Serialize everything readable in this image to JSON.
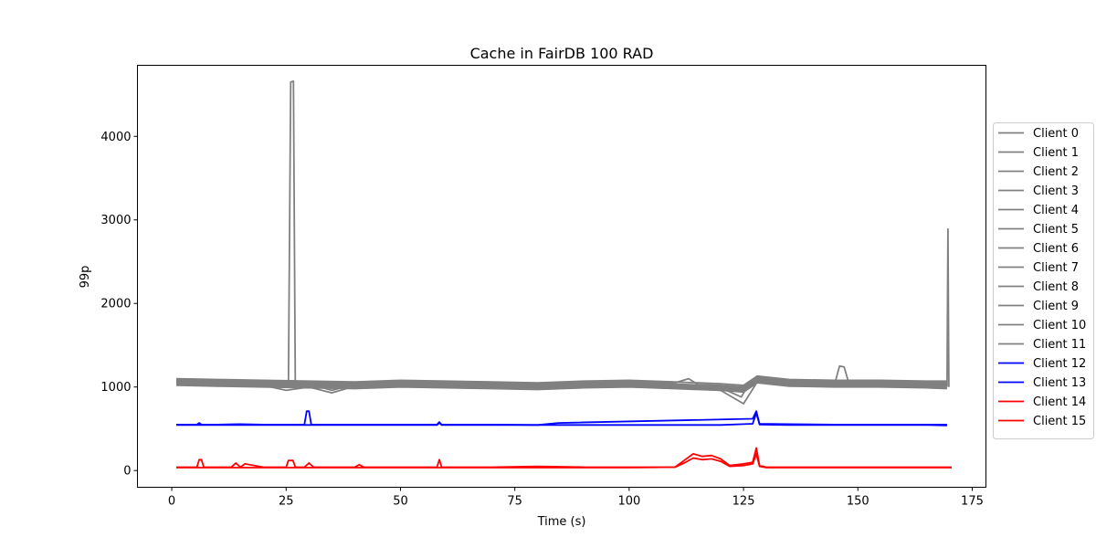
{
  "chart_data": {
    "type": "line",
    "title": "Cache in  FairDB 100 RAD",
    "xlabel": "Time (s)",
    "ylabel": "99p",
    "xlim": [
      -7.5,
      178
    ],
    "ylim": [
      -200,
      4850
    ],
    "xticks": [
      0,
      25,
      50,
      75,
      100,
      125,
      150,
      175
    ],
    "xtick_labels": [
      "0",
      "25",
      "50",
      "75",
      "100",
      "125",
      "150",
      "175"
    ],
    "yticks": [
      0,
      1000,
      2000,
      3000,
      4000
    ],
    "ytick_labels": [
      "0",
      "1000",
      "2000",
      "3000",
      "4000"
    ],
    "grid": false,
    "legend_position": "right",
    "colors": {
      "gray": "#808080",
      "blue": "#0000ff",
      "red": "#ff0000"
    },
    "series": [
      {
        "name": "Client 0",
        "color": "#808080",
        "x": [
          1,
          10,
          20,
          24,
          25.5,
          26,
          26.6,
          27,
          30,
          40,
          50,
          60,
          70,
          80,
          90,
          100,
          110,
          120,
          124,
          126,
          128,
          135,
          145,
          155,
          165,
          169.5
        ],
        "y": [
          1080,
          1070,
          1060,
          1040,
          1050,
          4650,
          4660,
          1060,
          1050,
          1040,
          1060,
          1040,
          1030,
          1020,
          1040,
          1050,
          1030,
          1010,
          980,
          1040,
          1110,
          1070,
          1060,
          1060,
          1050,
          1050
        ]
      },
      {
        "name": "Client 1",
        "color": "#808080",
        "x": [
          1,
          10,
          20,
          25,
          30,
          40,
          50,
          60,
          70,
          80,
          90,
          100,
          110,
          120,
          124.5,
          126,
          128,
          135,
          145,
          155,
          165,
          169.5
        ],
        "y": [
          1060,
          1050,
          1040,
          1000,
          1030,
          1020,
          1040,
          1030,
          1010,
          1000,
          1020,
          1030,
          1010,
          990,
          880,
          1020,
          1090,
          1050,
          1040,
          1040,
          1030,
          1030
        ]
      },
      {
        "name": "Client 2",
        "color": "#808080",
        "x": [
          1,
          10,
          20,
          25,
          30,
          35,
          40,
          50,
          60,
          70,
          80,
          90,
          100,
          110,
          120,
          125,
          128,
          135,
          145,
          155,
          165,
          169.5
        ],
        "y": [
          1040,
          1030,
          1020,
          960,
          1000,
          930,
          1010,
          1020,
          1010,
          990,
          980,
          1000,
          1010,
          990,
          960,
          800,
          1060,
          1030,
          1020,
          1020,
          1010,
          1010
        ]
      },
      {
        "name": "Client 3",
        "color": "#808080",
        "x": [
          1,
          10,
          20,
          30,
          40,
          50,
          60,
          70,
          80,
          90,
          100,
          110,
          113,
          115,
          120,
          125,
          128,
          135,
          145,
          155,
          165,
          169.5
        ],
        "y": [
          1090,
          1080,
          1070,
          1060,
          1050,
          1070,
          1060,
          1050,
          1040,
          1060,
          1070,
          1050,
          1100,
          1030,
          1020,
          1000,
          1120,
          1080,
          1070,
          1070,
          1060,
          1060
        ]
      },
      {
        "name": "Client 4",
        "color": "#808080",
        "x": [
          1,
          10,
          20,
          30,
          35,
          40,
          50,
          60,
          70,
          80,
          90,
          100,
          110,
          120,
          125,
          128,
          135,
          145,
          146,
          147,
          148,
          155,
          165,
          169.5
        ],
        "y": [
          1070,
          1060,
          1050,
          1040,
          960,
          1030,
          1050,
          1040,
          1030,
          1020,
          1040,
          1050,
          1030,
          1010,
          990,
          1100,
          1060,
          1050,
          1250,
          1240,
          1050,
          1050,
          1040,
          1040
        ]
      },
      {
        "name": "Client 5",
        "color": "#808080",
        "x": [
          1,
          10,
          20,
          30,
          40,
          50,
          60,
          70,
          80,
          90,
          100,
          110,
          120,
          125,
          128,
          135,
          145,
          155,
          165,
          169.5
        ],
        "y": [
          1050,
          1040,
          1030,
          1020,
          1010,
          1030,
          1020,
          1010,
          1000,
          1020,
          1030,
          1010,
          990,
          970,
          1080,
          1040,
          1030,
          1030,
          1020,
          1020
        ]
      },
      {
        "name": "Client 6",
        "color": "#808080",
        "x": [
          1,
          10,
          20,
          30,
          40,
          50,
          60,
          70,
          80,
          90,
          100,
          110,
          120,
          125,
          128,
          135,
          145,
          155,
          165,
          169.5
        ],
        "y": [
          1030,
          1020,
          1010,
          1000,
          990,
          1010,
          1000,
          990,
          980,
          1000,
          1010,
          990,
          970,
          950,
          1060,
          1020,
          1010,
          1010,
          1000,
          990
        ]
      },
      {
        "name": "Client 7",
        "color": "#808080",
        "x": [
          1,
          10,
          20,
          30,
          40,
          50,
          60,
          70,
          80,
          90,
          100,
          110,
          120,
          125,
          128,
          135,
          145,
          155,
          165,
          169.5
        ],
        "y": [
          1100,
          1090,
          1080,
          1070,
          1060,
          1080,
          1070,
          1060,
          1050,
          1070,
          1080,
          1060,
          1040,
          1020,
          1130,
          1090,
          1080,
          1080,
          1070,
          1070
        ]
      },
      {
        "name": "Client 8",
        "color": "#808080",
        "x": [
          1,
          10,
          20,
          30,
          40,
          50,
          60,
          70,
          80,
          90,
          100,
          110,
          120,
          125,
          128,
          135,
          145,
          155,
          165,
          169.5
        ],
        "y": [
          1020,
          1010,
          1000,
          990,
          980,
          1000,
          990,
          980,
          970,
          990,
          1000,
          980,
          960,
          940,
          1050,
          1010,
          1000,
          1000,
          990,
          980
        ]
      },
      {
        "name": "Client 9",
        "color": "#808080",
        "x": [
          1,
          10,
          20,
          30,
          40,
          50,
          60,
          70,
          80,
          90,
          100,
          110,
          120,
          125,
          128,
          135,
          145,
          155,
          165,
          169.5
        ],
        "y": [
          1060,
          1055,
          1045,
          1035,
          1025,
          1045,
          1035,
          1025,
          1015,
          1035,
          1045,
          1025,
          1005,
          985,
          1095,
          1055,
          1045,
          1045,
          1035,
          1035
        ]
      },
      {
        "name": "Client 10",
        "color": "#808080",
        "x": [
          1,
          10,
          20,
          30,
          40,
          50,
          60,
          70,
          80,
          90,
          100,
          110,
          120,
          125,
          128,
          135,
          145,
          155,
          165,
          169.5,
          169.7,
          169.9
        ],
        "y": [
          1045,
          1035,
          1025,
          1015,
          1005,
          1025,
          1015,
          1005,
          995,
          1015,
          1025,
          1005,
          985,
          965,
          1075,
          1035,
          1025,
          1025,
          1015,
          1010,
          2890,
          1000
        ]
      },
      {
        "name": "Client 11",
        "color": "#808080",
        "x": [
          1,
          10,
          20,
          30,
          40,
          50,
          60,
          70,
          80,
          90,
          100,
          110,
          120,
          125,
          128,
          135,
          145,
          155,
          165,
          169.5
        ],
        "y": [
          1075,
          1065,
          1055,
          1045,
          1035,
          1055,
          1045,
          1035,
          1025,
          1045,
          1055,
          1035,
          1015,
          995,
          1105,
          1065,
          1055,
          1055,
          1045,
          1045
        ]
      },
      {
        "name": "Client 12",
        "color": "#0000ff",
        "x": [
          1,
          5.5,
          6,
          6.5,
          10,
          15,
          20,
          29,
          29.5,
          30,
          30.5,
          40,
          50,
          58,
          58.5,
          59,
          70,
          80,
          84.5,
          127,
          127.8,
          128.5,
          135,
          145,
          155,
          165,
          169.5
        ],
        "y": [
          550,
          550,
          570,
          550,
          550,
          555,
          550,
          550,
          710,
          710,
          550,
          550,
          550,
          550,
          580,
          550,
          550,
          545,
          570,
          620,
          710,
          560,
          555,
          550,
          550,
          550,
          550
        ]
      },
      {
        "name": "Client 13",
        "color": "#0000ff",
        "x": [
          1,
          10,
          20,
          30,
          40,
          50,
          58,
          58.5,
          59,
          70,
          80,
          90,
          100,
          110,
          120,
          127,
          127.8,
          128.5,
          135,
          145,
          155,
          165,
          169.5
        ],
        "y": [
          545,
          545,
          545,
          545,
          545,
          545,
          545,
          570,
          545,
          545,
          545,
          545,
          545,
          545,
          545,
          560,
          690,
          550,
          545,
          545,
          545,
          545,
          540
        ]
      },
      {
        "name": "Client 15",
        "color": "#ff0000",
        "x": [
          1,
          5.5,
          6,
          6.5,
          7,
          13,
          14,
          15,
          16,
          20,
          25,
          25.5,
          26.5,
          27,
          29,
          30,
          31,
          40,
          41,
          42,
          50,
          58,
          58.5,
          59,
          70,
          80,
          90,
          100,
          110,
          112,
          114,
          116,
          118,
          120,
          122,
          125,
          127,
          127.8,
          128.5,
          130,
          135,
          145,
          155,
          165,
          170.5
        ],
        "y": [
          40,
          40,
          130,
          130,
          40,
          40,
          90,
          40,
          80,
          40,
          40,
          120,
          120,
          40,
          40,
          90,
          40,
          40,
          70,
          40,
          40,
          40,
          130,
          40,
          40,
          50,
          40,
          40,
          40,
          120,
          200,
          170,
          180,
          140,
          60,
          80,
          100,
          270,
          60,
          40,
          40,
          40,
          40,
          40,
          40
        ]
      },
      {
        "name": "Client 14",
        "color": "#ff0000",
        "x": [
          1,
          10,
          20,
          30,
          40,
          50,
          60,
          70,
          80,
          90,
          100,
          110,
          112,
          114,
          116,
          118,
          120,
          122,
          125,
          127,
          127.8,
          128.5,
          130,
          135,
          145,
          155,
          165,
          170.5
        ],
        "y": [
          35,
          35,
          35,
          35,
          35,
          35,
          35,
          35,
          35,
          35,
          35,
          40,
          90,
          150,
          130,
          140,
          110,
          50,
          60,
          80,
          200,
          50,
          35,
          35,
          35,
          35,
          35,
          35
        ]
      }
    ],
    "legend": [
      {
        "name": "Client 0",
        "color": "#808080"
      },
      {
        "name": "Client 1",
        "color": "#808080"
      },
      {
        "name": "Client 2",
        "color": "#808080"
      },
      {
        "name": "Client 3",
        "color": "#808080"
      },
      {
        "name": "Client 4",
        "color": "#808080"
      },
      {
        "name": "Client 5",
        "color": "#808080"
      },
      {
        "name": "Client 6",
        "color": "#808080"
      },
      {
        "name": "Client 7",
        "color": "#808080"
      },
      {
        "name": "Client 8",
        "color": "#808080"
      },
      {
        "name": "Client 9",
        "color": "#808080"
      },
      {
        "name": "Client 10",
        "color": "#808080"
      },
      {
        "name": "Client 11",
        "color": "#808080"
      },
      {
        "name": "Client 12",
        "color": "#0000ff"
      },
      {
        "name": "Client 13",
        "color": "#0000ff"
      },
      {
        "name": "Client 14",
        "color": "#ff0000"
      },
      {
        "name": "Client 15",
        "color": "#ff0000"
      }
    ]
  }
}
